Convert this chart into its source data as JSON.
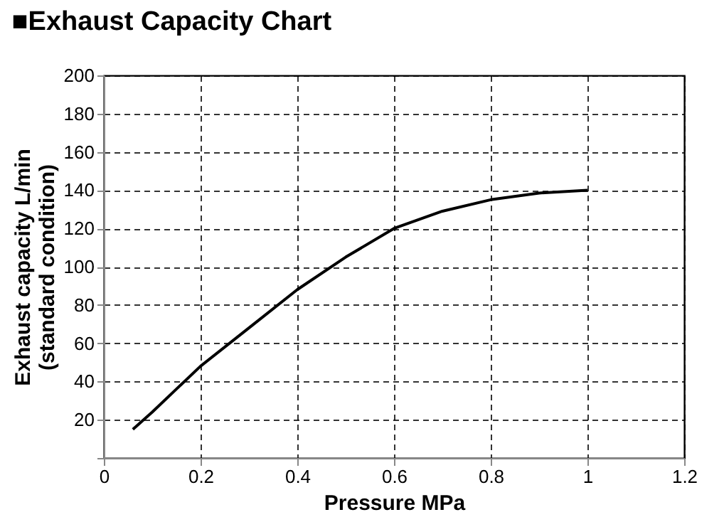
{
  "chart_data": {
    "type": "line",
    "title": "■Exhaust Capacity Chart",
    "xlabel": "Pressure MPa",
    "ylabel": "Exhaust capacity L/min\n(standard condition)",
    "x": [
      0.06,
      0.1,
      0.15,
      0.2,
      0.3,
      0.4,
      0.5,
      0.6,
      0.7,
      0.8,
      0.9,
      1.0
    ],
    "series": [
      {
        "color": "#000000",
        "values": [
          15,
          24,
          36,
          48,
          68,
          88,
          105,
          120,
          129,
          135,
          138.5,
          140
        ]
      }
    ],
    "xlim": [
      0,
      1.2
    ],
    "xticks": [
      0,
      0.2,
      0.4,
      0.6,
      0.8,
      1,
      1.2
    ],
    "ylim": [
      0,
      200
    ],
    "yticks": [
      {
        "value": 0,
        "label": null
      },
      20,
      40,
      60,
      80,
      100,
      120,
      140,
      160,
      180,
      200
    ],
    "grid": true,
    "marker": "none",
    "line_style": "solid"
  }
}
